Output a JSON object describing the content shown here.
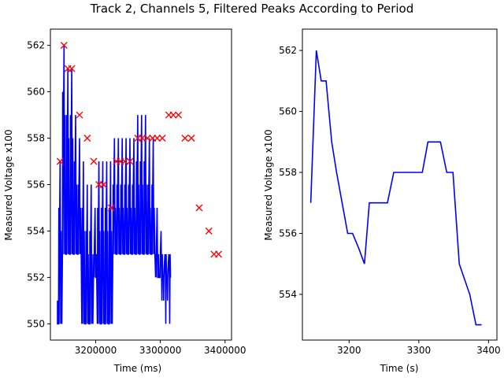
{
  "figure_title": "Track 2, Channels 5, Filtered Peaks According to Period",
  "chart_data": [
    {
      "type": "line",
      "xlabel": "Time (ms)",
      "ylabel": "Measured Voltage x100",
      "xlim": [
        3130000,
        3410000
      ],
      "ylim": [
        549.3,
        562.7
      ],
      "xticks": [
        3200000,
        3300000,
        3400000
      ],
      "yticks": [
        550,
        552,
        554,
        556,
        558,
        560,
        562
      ],
      "grid": false,
      "series": [
        {
          "color": "#0000ff",
          "peak_start": 3145000,
          "peak_period": 6000,
          "peak_values": [
            557,
            562,
            561,
            561,
            559,
            558,
            557,
            556,
            556,
            555,
            557,
            557,
            557,
            557,
            558,
            558,
            558,
            558,
            558,
            558,
            559,
            559,
            559,
            558,
            558,
            555,
            554,
            553,
            553
          ]
        }
      ],
      "markers": {
        "symbol": "x",
        "color": "#ff0000",
        "x": [
          3145000,
          3151000,
          3157000,
          3163000,
          3175000,
          3187000,
          3197000,
          3205000,
          3212000,
          3224000,
          3232000,
          3238000,
          3245000,
          3253000,
          3265000,
          3272000,
          3280000,
          3288000,
          3295000,
          3303000,
          3313000,
          3320000,
          3328000,
          3338000,
          3348000,
          3360000,
          3375000,
          3383000,
          3390000
        ],
        "y": [
          557,
          562,
          561,
          561,
          559,
          558,
          557,
          556,
          556,
          555,
          557,
          557,
          557,
          557,
          558,
          558,
          558,
          558,
          558,
          558,
          559,
          559,
          559,
          558,
          558,
          555,
          554,
          553,
          553
        ]
      }
    },
    {
      "type": "line",
      "xlabel": "Time (s)",
      "ylabel": "Measured Voltage x100",
      "xlim": [
        3133,
        3412
      ],
      "ylim": [
        552.5,
        562.7
      ],
      "xticks": [
        3200,
        3300,
        3400
      ],
      "yticks": [
        554,
        556,
        558,
        560,
        562
      ],
      "grid": false,
      "series": [
        {
          "color": "#0000ff",
          "x": [
            3145,
            3153,
            3160,
            3167,
            3175,
            3182,
            3198,
            3205,
            3214,
            3222,
            3229,
            3245,
            3255,
            3264,
            3272,
            3280,
            3290,
            3305,
            3313,
            3322,
            3331,
            3340,
            3349,
            3358,
            3373,
            3382,
            3390
          ],
          "y": [
            557,
            562,
            561,
            561,
            559,
            558,
            556,
            556,
            555.5,
            555,
            557,
            557,
            557,
            558,
            558,
            558,
            558,
            558,
            559,
            559,
            559,
            558,
            558,
            555,
            554,
            553,
            553
          ]
        }
      ]
    }
  ]
}
